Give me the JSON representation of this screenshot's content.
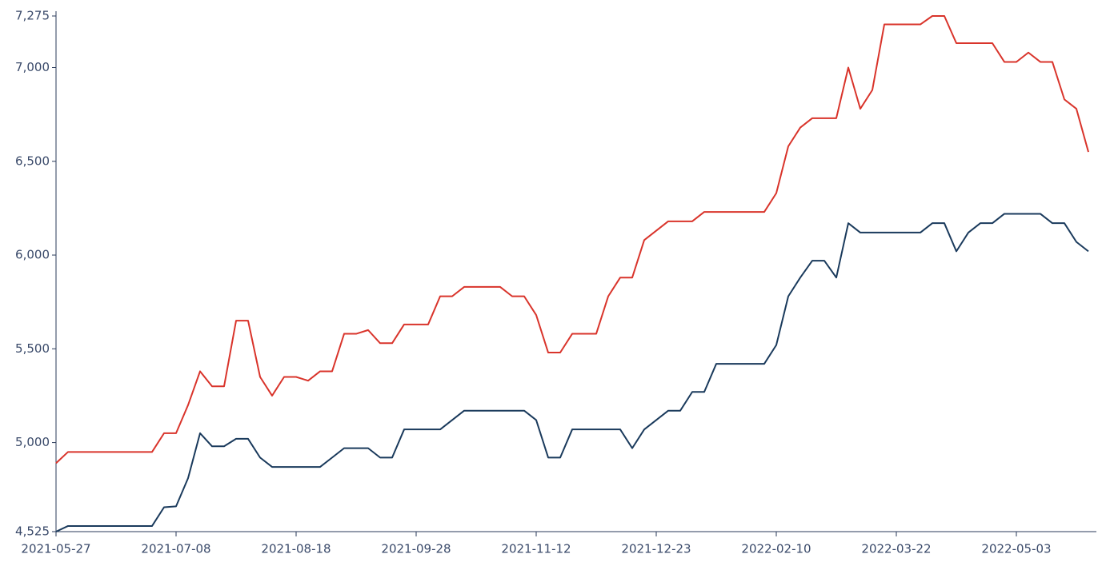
{
  "chart_data": {
    "type": "line",
    "categories": [
      "2021-05-27",
      null,
      null,
      null,
      null,
      null,
      null,
      null,
      null,
      null,
      "2021-07-08",
      null,
      null,
      null,
      null,
      null,
      null,
      null,
      null,
      null,
      "2021-08-18",
      null,
      null,
      null,
      null,
      null,
      null,
      null,
      null,
      null,
      "2021-09-28",
      null,
      null,
      null,
      null,
      null,
      null,
      null,
      null,
      null,
      "2021-11-12",
      null,
      null,
      null,
      null,
      null,
      null,
      null,
      null,
      null,
      "2021-12-23",
      null,
      null,
      null,
      null,
      null,
      null,
      null,
      null,
      null,
      "2022-02-10",
      null,
      null,
      null,
      null,
      null,
      null,
      null,
      null,
      null,
      "2022-03-22",
      null,
      null,
      null,
      null,
      null,
      null,
      null,
      null,
      null,
      "2022-05-03",
      null,
      null,
      null,
      null,
      null,
      null
    ],
    "series": [
      {
        "color": "#d9342b",
        "values": [
          4890,
          4950,
          4950,
          4950,
          4950,
          4950,
          4950,
          4950,
          4950,
          5050,
          5050,
          5200,
          5380,
          5300,
          5300,
          5650,
          5650,
          5350,
          5250,
          5350,
          5350,
          5330,
          5380,
          5380,
          5580,
          5580,
          5600,
          5530,
          5530,
          5630,
          5630,
          5630,
          5780,
          5780,
          5830,
          5830,
          5830,
          5830,
          5780,
          5780,
          5680,
          5480,
          5480,
          5580,
          5580,
          5580,
          5780,
          5880,
          5880,
          6080,
          6130,
          6180,
          6180,
          6180,
          6230,
          6230,
          6230,
          6230,
          6230,
          6230,
          6330,
          6580,
          6680,
          6730,
          6730,
          6730,
          7000,
          6780,
          6880,
          7230,
          7230,
          7230,
          7230,
          7275,
          7275,
          7130,
          7130,
          7130,
          7130,
          7030,
          7030,
          7080,
          7030,
          7030,
          6830,
          6780,
          6550
        ]
      },
      {
        "color": "#1a3a5c",
        "values": [
          4525,
          4555,
          4555,
          4555,
          4555,
          4555,
          4555,
          4555,
          4555,
          4655,
          4660,
          4810,
          5050,
          4980,
          4980,
          5020,
          5020,
          4920,
          4870,
          4870,
          4870,
          4870,
          4870,
          4920,
          4970,
          4970,
          4970,
          4920,
          4920,
          5070,
          5070,
          5070,
          5070,
          5120,
          5170,
          5170,
          5170,
          5170,
          5170,
          5170,
          5120,
          4920,
          4920,
          5070,
          5070,
          5070,
          5070,
          5070,
          4970,
          5070,
          5120,
          5170,
          5170,
          5270,
          5270,
          5420,
          5420,
          5420,
          5420,
          5420,
          5520,
          5780,
          5880,
          5970,
          5970,
          5880,
          6170,
          6120,
          6120,
          6120,
          6120,
          6120,
          6120,
          6170,
          6170,
          6020,
          6120,
          6170,
          6170,
          6220,
          6220,
          6220,
          6220,
          6170,
          6170,
          6070,
          6020
        ]
      }
    ],
    "ylim": [
      4525,
      7275
    ],
    "yticks": [
      {
        "value": 4525,
        "label": "4,525"
      },
      {
        "value": 5000,
        "label": "5,000"
      },
      {
        "value": 5500,
        "label": "5,500"
      },
      {
        "value": 6000,
        "label": "6,000"
      },
      {
        "value": 6500,
        "label": "6,500"
      },
      {
        "value": 7000,
        "label": "7,000"
      },
      {
        "value": 7275,
        "label": "7,275"
      }
    ],
    "grid": false
  }
}
